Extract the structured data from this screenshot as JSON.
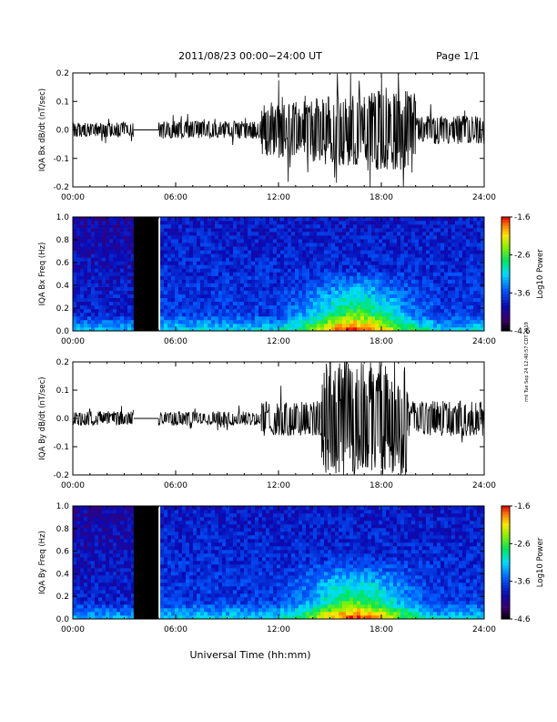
{
  "header": {
    "title": "2011/08/23  00:00−24:00 UT",
    "page": "Page 1/1"
  },
  "footer": {
    "xlabel": "Universal Time (hh:mm)",
    "side_note": "rml Tue Sep 24 12:40:57 CDT 2019"
  },
  "chart_data": [
    {
      "type": "line",
      "ylabel": "IQA Bx dB/dt (nT/sec)",
      "xlim_hours": [
        0,
        24
      ],
      "x_ticks": [
        "00:00",
        "06:00",
        "12:00",
        "18:00",
        "24:00"
      ],
      "ylim": [
        -0.2,
        0.2
      ],
      "y_ticks": [
        "-0.2",
        "-0.1",
        "0.0",
        "0.1",
        "0.2"
      ],
      "data_gap_hours": [
        3.55,
        5.0
      ],
      "segments": [
        {
          "from": 0.0,
          "to": 3.55,
          "amp": 0.02
        },
        {
          "from": 5.0,
          "to": 11.0,
          "amp": 0.025
        },
        {
          "from": 11.0,
          "to": 14.0,
          "amp": 0.08
        },
        {
          "from": 14.0,
          "to": 17.0,
          "amp": 0.1
        },
        {
          "from": 17.0,
          "to": 20.0,
          "amp": 0.12
        },
        {
          "from": 20.0,
          "to": 24.0,
          "amp": 0.04
        }
      ]
    },
    {
      "type": "heatmap",
      "ylabel": "IQA Bx Freq (Hz)",
      "xlim_hours": [
        0,
        24
      ],
      "x_ticks": [
        "00:00",
        "06:00",
        "12:00",
        "18:00",
        "24:00"
      ],
      "ylim": [
        0.0,
        1.0
      ],
      "y_ticks": [
        "0.0",
        "0.2",
        "0.4",
        "0.6",
        "0.8",
        "1.0"
      ],
      "data_gap_hours": [
        3.55,
        5.0
      ],
      "colorbar": {
        "label": "Log10 Power",
        "ticks": [
          "-1.6",
          "-2.6",
          "-3.6",
          "-4.6"
        ],
        "range": [
          -4.6,
          -1.6
        ]
      }
    },
    {
      "type": "line",
      "ylabel": "IQA By dB/dt (nT/sec)",
      "xlim_hours": [
        0,
        24
      ],
      "x_ticks": [
        "00:00",
        "06:00",
        "12:00",
        "18:00",
        "24:00"
      ],
      "ylim": [
        -0.2,
        0.2
      ],
      "y_ticks": [
        "-0.2",
        "-0.1",
        "0.0",
        "0.1",
        "0.2"
      ],
      "data_gap_hours": [
        3.55,
        5.0
      ],
      "segments": [
        {
          "from": 0.0,
          "to": 3.55,
          "amp": 0.02
        },
        {
          "from": 5.0,
          "to": 11.0,
          "amp": 0.02
        },
        {
          "from": 11.0,
          "to": 14.5,
          "amp": 0.05
        },
        {
          "from": 14.5,
          "to": 19.5,
          "amp": 0.16
        },
        {
          "from": 19.5,
          "to": 24.0,
          "amp": 0.05
        }
      ]
    },
    {
      "type": "heatmap",
      "ylabel": "IQA By Freq (Hz)",
      "xlim_hours": [
        0,
        24
      ],
      "x_ticks": [
        "00:00",
        "06:00",
        "12:00",
        "18:00",
        "24:00"
      ],
      "ylim": [
        0.0,
        1.0
      ],
      "y_ticks": [
        "0.0",
        "0.2",
        "0.4",
        "0.6",
        "0.8",
        "1.0"
      ],
      "data_gap_hours": [
        3.55,
        5.0
      ],
      "colorbar": {
        "label": "Log10 Power",
        "ticks": [
          "-1.6",
          "-2.6",
          "-3.6",
          "-4.6"
        ],
        "range": [
          -4.6,
          -1.6
        ]
      }
    }
  ]
}
